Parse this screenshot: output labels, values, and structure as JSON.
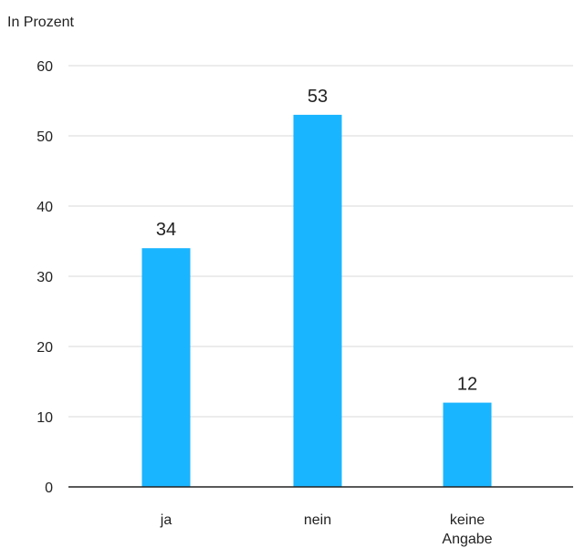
{
  "chart_data": {
    "type": "bar",
    "title": "",
    "ylabel": "In Prozent",
    "xlabel": "",
    "categories": [
      "ja",
      "nein",
      "keine Angabe"
    ],
    "category_lines": [
      [
        "ja"
      ],
      [
        "nein"
      ],
      [
        "keine",
        "Angabe"
      ]
    ],
    "values": [
      34,
      53,
      12
    ],
    "data_labels": [
      "34",
      "53",
      "12"
    ],
    "ylim": [
      0,
      60
    ],
    "yticks": [
      0,
      10,
      20,
      30,
      40,
      50,
      60
    ],
    "grid": true,
    "bar_color": "#1AB5FF",
    "grid_color": "#d9d9d9",
    "axis_color": "#222222"
  }
}
